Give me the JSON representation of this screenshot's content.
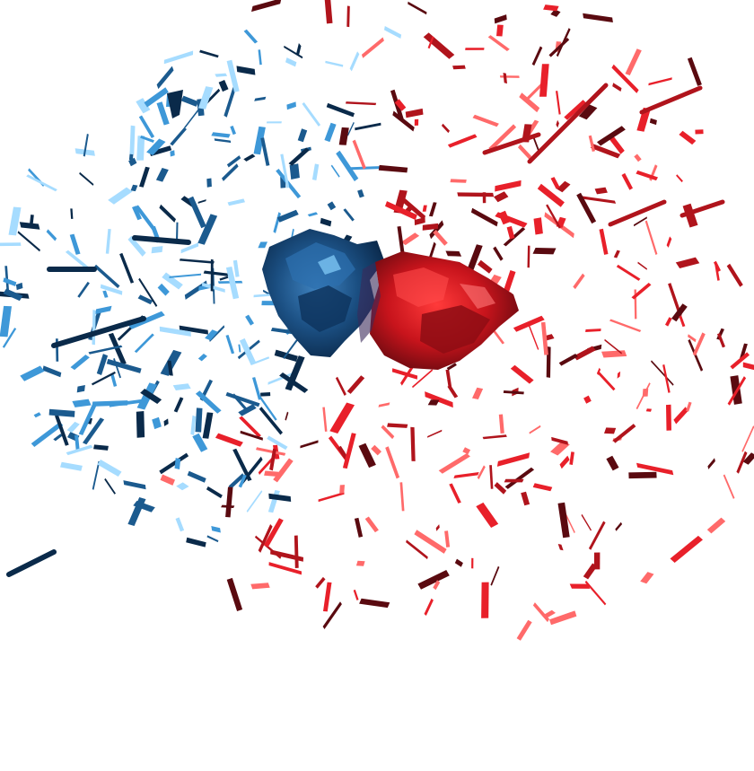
{
  "image": {
    "subject": "shattered-glass-splash",
    "background_color": "#ffffff",
    "palette": {
      "blue_dark": "#0a2a4a",
      "blue_mid": "#1b5a8e",
      "blue_light": "#3e98d8",
      "blue_highlight": "#a6dcff",
      "red_dark": "#5a0a10",
      "red_mid": "#b0141c",
      "red_bright": "#e8202a",
      "red_highlight": "#ff6a6a"
    }
  }
}
